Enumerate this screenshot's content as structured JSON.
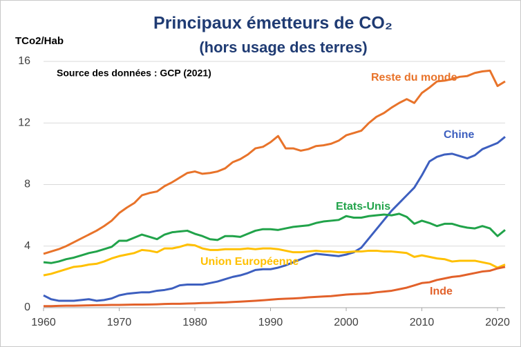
{
  "chart_data": {
    "type": "line",
    "title": "Principaux émetteurs de CO₂",
    "subtitle": "(hors usage des terres)",
    "y_label": "TCo2/Hab",
    "annotation": "Source des données : GCP (2021)",
    "x": [
      1960,
      1961,
      1962,
      1963,
      1964,
      1965,
      1966,
      1967,
      1968,
      1969,
      1970,
      1971,
      1972,
      1973,
      1974,
      1975,
      1976,
      1977,
      1978,
      1979,
      1980,
      1981,
      1982,
      1983,
      1984,
      1985,
      1986,
      1987,
      1988,
      1989,
      1990,
      1991,
      1992,
      1993,
      1994,
      1995,
      1996,
      1997,
      1998,
      1999,
      2000,
      2001,
      2002,
      2003,
      2004,
      2005,
      2006,
      2007,
      2008,
      2009,
      2010,
      2011,
      2012,
      2013,
      2014,
      2015,
      2016,
      2017,
      2018,
      2019,
      2020,
      2021
    ],
    "series": [
      {
        "name": "Reste du monde",
        "color": "#E8732A",
        "values": [
          3.5,
          3.65,
          3.8,
          4.0,
          4.25,
          4.5,
          4.75,
          5.0,
          5.3,
          5.65,
          6.15,
          6.5,
          6.8,
          7.3,
          7.45,
          7.55,
          7.9,
          8.15,
          8.45,
          8.75,
          8.85,
          8.7,
          8.75,
          8.85,
          9.05,
          9.45,
          9.65,
          9.95,
          10.35,
          10.45,
          10.75,
          11.15,
          10.35,
          10.35,
          10.2,
          10.3,
          10.5,
          10.55,
          10.65,
          10.85,
          11.2,
          11.35,
          11.5,
          12.0,
          12.4,
          12.65,
          13.0,
          13.3,
          13.55,
          13.3,
          13.95,
          14.3,
          14.7,
          14.75,
          14.85,
          15.0,
          15.05,
          15.25,
          15.35,
          15.4,
          14.4,
          14.7
        ]
      },
      {
        "name": "Chine",
        "color": "#3D5FBF",
        "values": [
          0.8,
          0.55,
          0.45,
          0.45,
          0.45,
          0.5,
          0.55,
          0.45,
          0.5,
          0.6,
          0.8,
          0.9,
          0.95,
          1.0,
          1.0,
          1.1,
          1.15,
          1.25,
          1.45,
          1.5,
          1.5,
          1.5,
          1.6,
          1.7,
          1.85,
          2.0,
          2.1,
          2.25,
          2.45,
          2.5,
          2.5,
          2.6,
          2.75,
          2.95,
          3.15,
          3.35,
          3.5,
          3.45,
          3.4,
          3.35,
          3.45,
          3.6,
          3.9,
          4.5,
          5.1,
          5.7,
          6.3,
          6.8,
          7.3,
          7.8,
          8.6,
          9.5,
          9.8,
          9.95,
          10.0,
          9.85,
          9.7,
          9.9,
          10.3,
          10.5,
          10.7,
          11.1
        ]
      },
      {
        "name": "Etats-Unis",
        "color": "#21A34A",
        "values": [
          2.95,
          2.9,
          3.0,
          3.15,
          3.25,
          3.4,
          3.55,
          3.65,
          3.8,
          3.95,
          4.35,
          4.35,
          4.55,
          4.75,
          4.6,
          4.45,
          4.75,
          4.9,
          4.95,
          5.0,
          4.8,
          4.65,
          4.45,
          4.4,
          4.65,
          4.65,
          4.6,
          4.8,
          5.0,
          5.1,
          5.1,
          5.05,
          5.15,
          5.25,
          5.3,
          5.35,
          5.5,
          5.6,
          5.65,
          5.7,
          5.95,
          5.85,
          5.85,
          5.95,
          6.0,
          6.05,
          6.0,
          6.1,
          5.9,
          5.45,
          5.65,
          5.5,
          5.3,
          5.45,
          5.45,
          5.3,
          5.2,
          5.15,
          5.3,
          5.15,
          4.65,
          5.05
        ]
      },
      {
        "name": "Union Européenne",
        "color": "#FFC000",
        "values": [
          2.1,
          2.2,
          2.35,
          2.5,
          2.65,
          2.7,
          2.8,
          2.85,
          3.0,
          3.2,
          3.35,
          3.45,
          3.55,
          3.75,
          3.7,
          3.6,
          3.85,
          3.85,
          3.95,
          4.1,
          4.05,
          3.85,
          3.75,
          3.75,
          3.8,
          3.8,
          3.8,
          3.85,
          3.8,
          3.85,
          3.85,
          3.8,
          3.7,
          3.6,
          3.6,
          3.65,
          3.7,
          3.65,
          3.65,
          3.6,
          3.6,
          3.65,
          3.65,
          3.7,
          3.7,
          3.65,
          3.65,
          3.6,
          3.55,
          3.3,
          3.4,
          3.3,
          3.2,
          3.15,
          3.0,
          3.05,
          3.05,
          3.05,
          2.95,
          2.85,
          2.6,
          2.8
        ]
      },
      {
        "name": "Inde",
        "color": "#E2612A",
        "values": [
          0.1,
          0.1,
          0.12,
          0.13,
          0.13,
          0.14,
          0.15,
          0.16,
          0.17,
          0.18,
          0.18,
          0.19,
          0.2,
          0.2,
          0.21,
          0.22,
          0.24,
          0.25,
          0.25,
          0.27,
          0.28,
          0.3,
          0.31,
          0.33,
          0.34,
          0.37,
          0.39,
          0.42,
          0.45,
          0.48,
          0.52,
          0.56,
          0.58,
          0.6,
          0.63,
          0.67,
          0.7,
          0.73,
          0.75,
          0.8,
          0.85,
          0.88,
          0.9,
          0.93,
          1.0,
          1.05,
          1.1,
          1.2,
          1.3,
          1.45,
          1.6,
          1.65,
          1.8,
          1.9,
          2.0,
          2.05,
          2.15,
          2.25,
          2.35,
          2.4,
          2.55,
          2.65
        ]
      }
    ],
    "xlim": [
      1960,
      2021
    ],
    "xticks": [
      1960,
      1970,
      1980,
      1990,
      2000,
      2010,
      2020
    ],
    "ylim": [
      0,
      16
    ],
    "yticks": [
      0,
      4,
      8,
      12,
      16
    ],
    "grid": true
  }
}
